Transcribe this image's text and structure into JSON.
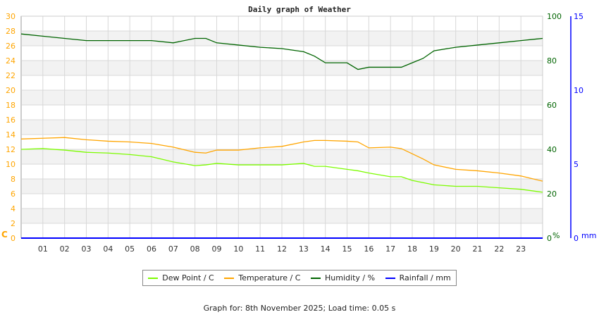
{
  "chart_data": {
    "type": "line",
    "title": "Daily graph of Weather",
    "x": [
      0,
      1,
      2,
      3,
      4,
      5,
      6,
      7,
      8,
      8.5,
      9,
      10,
      11,
      12,
      13,
      13.5,
      14,
      15,
      15.5,
      16,
      17,
      17.5,
      18,
      18.5,
      19,
      20,
      21,
      22,
      23,
      24
    ],
    "x_ticks": [
      "01",
      "02",
      "03",
      "04",
      "05",
      "06",
      "07",
      "08",
      "09",
      "10",
      "11",
      "12",
      "13",
      "14",
      "15",
      "16",
      "17",
      "18",
      "19",
      "20",
      "21",
      "22",
      "23"
    ],
    "xlim": [
      0,
      24
    ],
    "y_left": {
      "label": "C",
      "ylim": [
        0,
        30
      ],
      "ticks": [
        0,
        2,
        4,
        6,
        8,
        10,
        12,
        14,
        16,
        18,
        20,
        22,
        24,
        26,
        28,
        30
      ],
      "color": "#ffa500"
    },
    "y_right": {
      "label": "%",
      "ylim": [
        0,
        100
      ],
      "ticks": [
        0,
        20,
        40,
        60,
        80,
        100
      ],
      "color": "#006400"
    },
    "y_rain": {
      "label": "mm",
      "ylim": [
        0,
        15
      ],
      "ticks": [
        0,
        5,
        10,
        15
      ],
      "color": "#0000ff"
    },
    "grid": true,
    "legend_position": "bottom",
    "series": [
      {
        "name": "Dew Point / C",
        "axis": "left",
        "color": "#7cfc00",
        "values": [
          12,
          12.1,
          11.9,
          11.6,
          11.5,
          11.3,
          11,
          10.3,
          9.8,
          9.9,
          10.1,
          9.9,
          9.9,
          9.9,
          10.1,
          9.7,
          9.7,
          9.3,
          9.1,
          8.8,
          8.3,
          8.3,
          7.8,
          7.5,
          7.2,
          7,
          7,
          6.8,
          6.6,
          6.2
        ]
      },
      {
        "name": "Temperature / C",
        "axis": "left",
        "color": "#ffa500",
        "values": [
          13.4,
          13.5,
          13.6,
          13.3,
          13.1,
          13,
          12.8,
          12.3,
          11.6,
          11.5,
          11.9,
          11.9,
          12.2,
          12.4,
          13,
          13.2,
          13.2,
          13.1,
          13,
          12.2,
          12.3,
          12.1,
          11.4,
          10.7,
          9.9,
          9.3,
          9.1,
          8.8,
          8.4,
          7.7
        ]
      },
      {
        "name": "Humidity / %",
        "axis": "right",
        "color": "#006400",
        "values": [
          92,
          91,
          90,
          89,
          89,
          89,
          89,
          88,
          90,
          90,
          88,
          87,
          86,
          85.4,
          84,
          82,
          79,
          79,
          76,
          77,
          77,
          77,
          79,
          81,
          84.4,
          86,
          87,
          88,
          89,
          90
        ]
      },
      {
        "name": "Rainfall / mm",
        "axis": "rain",
        "color": "#0000ff",
        "values": [
          0,
          0,
          0,
          0,
          0,
          0,
          0,
          0,
          0,
          0,
          0,
          0,
          0,
          0,
          0,
          0,
          0,
          0,
          0,
          0,
          0,
          0,
          0,
          0,
          0,
          0,
          0,
          0,
          0,
          0
        ]
      }
    ]
  },
  "footer": "Graph for: 8th November 2025; Load time: 0.05 s"
}
